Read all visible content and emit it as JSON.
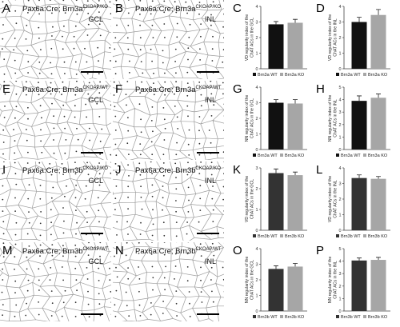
{
  "micrographs": [
    {
      "letter": "A",
      "genotype_prefix": "Pax6a:Cre; Brn3a",
      "genotype_sup": "CKOAP/KO",
      "layer": "GCL"
    },
    {
      "letter": "B",
      "genotype_prefix": "Pax6a:Cre; Brn3a",
      "genotype_sup": "CKOAP/KO",
      "layer": "INL"
    },
    {
      "letter": "E",
      "genotype_prefix": "Pax6a:Cre; Brn3a",
      "genotype_sup": "CKOAP/WT",
      "layer": "GCL"
    },
    {
      "letter": "F",
      "genotype_prefix": "Pax6a:Cre; Brn3a",
      "genotype_sup": "CKOAP/WT",
      "layer": "INL"
    },
    {
      "letter": "I",
      "genotype_prefix": "Pax6a:Cre; Brn3b",
      "genotype_sup": "CKOAP/KO",
      "layer": "GCL"
    },
    {
      "letter": "J",
      "genotype_prefix": "Pax6a:Cre; Brn3b",
      "genotype_sup": "CKOAP/KO",
      "layer": "INL"
    },
    {
      "letter": "M",
      "genotype_prefix": "Pax6a:Cre; Brn3b",
      "genotype_sup": "CKOAP/WT",
      "layer": "GCL"
    },
    {
      "letter": "N",
      "genotype_prefix": "Pax6a:Cre; Brn3b",
      "genotype_sup": "CKOAP/WT",
      "layer": "INL"
    }
  ],
  "chart_data": [
    {
      "letter": "C",
      "type": "bar",
      "categories": [
        "Brn3a WT",
        "Brn3a KO"
      ],
      "values": [
        2.85,
        2.95
      ],
      "errors": [
        0.18,
        0.22
      ],
      "colors": [
        "#111111",
        "#a6a6a6"
      ],
      "ylim": [
        0,
        4
      ],
      "yticks": [
        "0",
        "1",
        "2",
        "3",
        "4"
      ],
      "ylabel": [
        "VD regularity index of the",
        "ChAT ACs in the GCL"
      ],
      "legend": [
        "Brn3a WT",
        "Brn3a KO"
      ]
    },
    {
      "letter": "D",
      "type": "bar",
      "categories": [
        "Brn3a WT",
        "Brn3a KO"
      ],
      "values": [
        3.0,
        3.45
      ],
      "errors": [
        0.3,
        0.35
      ],
      "colors": [
        "#111111",
        "#a6a6a6"
      ],
      "ylim": [
        0,
        4
      ],
      "yticks": [
        "0",
        "1",
        "2",
        "3",
        "4"
      ],
      "ylabel": [
        "VD regularity index of the",
        "ChAT ACs in the INL"
      ],
      "legend": [
        "Brn3a WT",
        "Brn3a KO"
      ]
    },
    {
      "letter": "G",
      "type": "bar",
      "categories": [
        "Brn3a WT",
        "Brn3a KO"
      ],
      "values": [
        3.0,
        2.95
      ],
      "errors": [
        0.2,
        0.25
      ],
      "colors": [
        "#111111",
        "#a6a6a6"
      ],
      "ylim": [
        0,
        4
      ],
      "yticks": [
        "0",
        "1",
        "2",
        "3",
        "4"
      ],
      "ylabel": [
        "NN regularity index of the",
        "ChAT ACs in the GCL"
      ],
      "legend": [
        "Brn3a WT",
        "Brn3a KO"
      ]
    },
    {
      "letter": "H",
      "type": "bar",
      "categories": [
        "Brn3a WT",
        "Brn3a KO"
      ],
      "values": [
        3.9,
        4.15
      ],
      "errors": [
        0.4,
        0.3
      ],
      "colors": [
        "#111111",
        "#a6a6a6"
      ],
      "ylim": [
        0,
        5
      ],
      "yticks": [
        "0",
        "1",
        "2",
        "3",
        "4",
        "5"
      ],
      "ylabel": [
        "NN regularity index of the",
        "ChAT ACs in the INL"
      ],
      "legend": [
        "Brn3a WT",
        "Brn3a KO"
      ]
    },
    {
      "letter": "K",
      "type": "bar",
      "categories": [
        "Brn3b WT",
        "Brn3b KO"
      ],
      "values": [
        2.75,
        2.65
      ],
      "errors": [
        0.2,
        0.15
      ],
      "colors": [
        "#333333",
        "#a6a6a6"
      ],
      "ylim": [
        0,
        3
      ],
      "yticks": [
        "0",
        "1",
        "2",
        "3"
      ],
      "ylabel": [
        "VD regularity index of the",
        "ChAT ACs in the GCL"
      ],
      "legend": [
        "Brn3b WT",
        "Brn3b KO"
      ]
    },
    {
      "letter": "L",
      "type": "bar",
      "categories": [
        "Brn3b WT",
        "Brn3b KO"
      ],
      "values": [
        3.35,
        3.3
      ],
      "errors": [
        0.2,
        0.15
      ],
      "colors": [
        "#333333",
        "#a6a6a6"
      ],
      "ylim": [
        0,
        4
      ],
      "yticks": [
        "0",
        "1",
        "2",
        "3",
        "4"
      ],
      "ylabel": [
        "VD regularity index of the",
        "ChAT ACs in the INL"
      ],
      "legend": [
        "Brn3b WT",
        "Brn3b KO"
      ]
    },
    {
      "letter": "O",
      "type": "bar",
      "categories": [
        "Brn3b WT",
        "Brn3b KO"
      ],
      "values": [
        2.7,
        2.85
      ],
      "errors": [
        0.2,
        0.2
      ],
      "colors": [
        "#333333",
        "#a6a6a6"
      ],
      "ylim": [
        0,
        4
      ],
      "yticks": [
        "0",
        "1",
        "2",
        "3",
        "4"
      ],
      "ylabel": [
        "NN regularity index of the",
        "ChAT ACs in the GCL"
      ],
      "legend": [
        "Brn3b WT",
        "Brn3b KO"
      ]
    },
    {
      "letter": "P",
      "type": "bar",
      "categories": [
        "Brn3b WT",
        "Brn3b KO"
      ],
      "values": [
        4.05,
        4.1
      ],
      "errors": [
        0.2,
        0.2
      ],
      "colors": [
        "#333333",
        "#a6a6a6"
      ],
      "ylim": [
        0,
        5
      ],
      "yticks": [
        "0",
        "1",
        "2",
        "3",
        "4",
        "5"
      ],
      "ylabel": [
        "NN regularity index of the",
        "ChAT ACs in the INL"
      ],
      "legend": [
        "Brn3b WT",
        "Brn3b KO"
      ]
    }
  ]
}
